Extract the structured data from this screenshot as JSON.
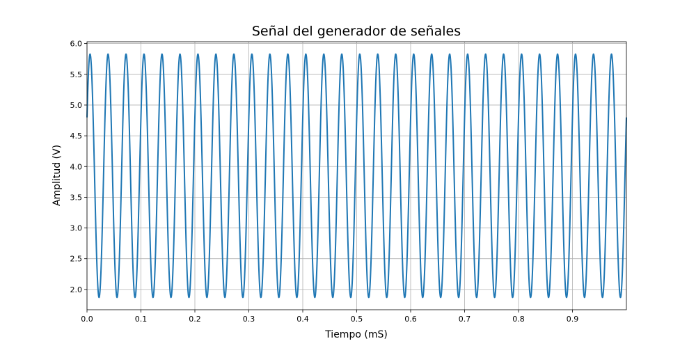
{
  "chart_data": {
    "type": "line",
    "title": "Señal del generador de señales",
    "xlabel": "Tiempo (mS)",
    "ylabel": "Amplitud (V)",
    "xlim": [
      0,
      1.0
    ],
    "ylim": [
      1.67,
      6.03
    ],
    "x_ticks": [
      0.0,
      0.1,
      0.2,
      0.3,
      0.4,
      0.5,
      0.6,
      0.7,
      0.8,
      0.9
    ],
    "x_tick_labels": [
      "0.0",
      "0.1",
      "0.2",
      "0.3",
      "0.4",
      "0.5",
      "0.6",
      "0.7",
      "0.8",
      "0.9"
    ],
    "y_ticks": [
      2.0,
      2.5,
      3.0,
      3.5,
      4.0,
      4.5,
      5.0,
      5.5,
      6.0
    ],
    "y_tick_labels": [
      "2.0",
      "2.5",
      "3.0",
      "3.5",
      "4.0",
      "4.5",
      "5.0",
      "5.5",
      "6.0"
    ],
    "grid": true,
    "series": [
      {
        "color": "#1f77b4",
        "function": "sine",
        "offset": 3.85,
        "amplitude": 1.98,
        "frequency": 30,
        "phase_rad": 0.5,
        "x_start": 0.0,
        "x_end": 1.0
      }
    ]
  }
}
